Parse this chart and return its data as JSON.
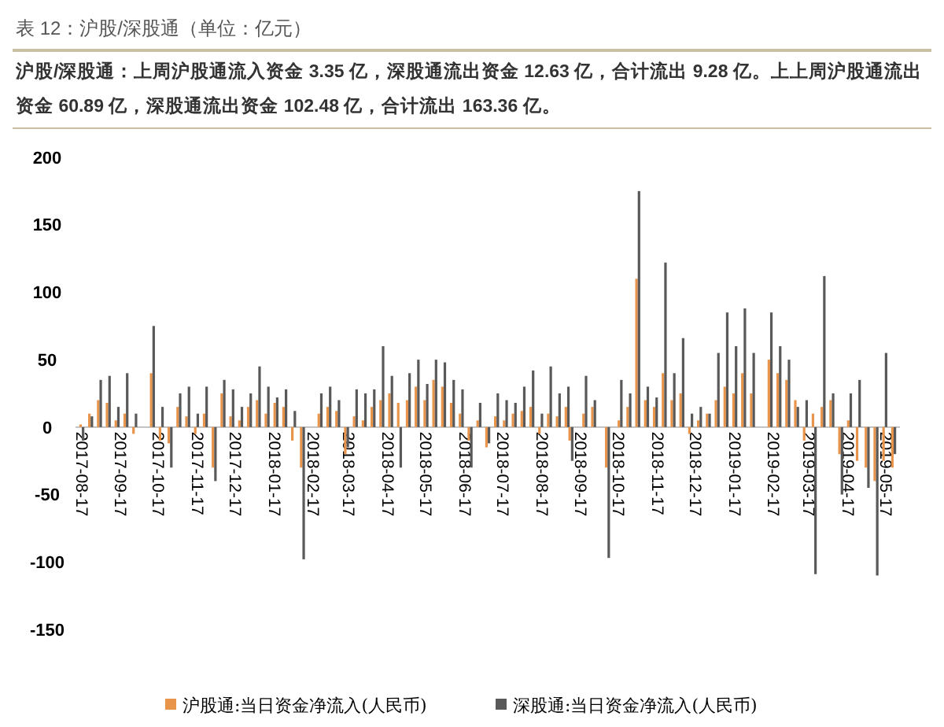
{
  "chart_data": {
    "type": "bar",
    "title": "表 12：沪股/深股通（单位：亿元）",
    "subtitle": "沪股/深股通：上周沪股通流入资金 3.35 亿，深股通流出资金 12.63 亿，合计流出 9.28 亿。上上周沪股通流出资金 60.89 亿，深股通流出资金 102.48 亿，合计流出 163.36 亿。",
    "x": [
      "2017-08-17",
      "2017-08-24",
      "2017-08-31",
      "2017-09-07",
      "2017-09-14",
      "2017-09-21",
      "2017-09-28",
      "2017-10-05",
      "2017-10-12",
      "2017-10-19",
      "2017-10-26",
      "2017-11-02",
      "2017-11-09",
      "2017-11-16",
      "2017-11-23",
      "2017-11-30",
      "2017-12-07",
      "2017-12-14",
      "2017-12-21",
      "2017-12-28",
      "2018-01-04",
      "2018-01-11",
      "2018-01-18",
      "2018-01-25",
      "2018-02-01",
      "2018-02-08",
      "2018-02-15",
      "2018-02-22",
      "2018-03-01",
      "2018-03-08",
      "2018-03-15",
      "2018-03-22",
      "2018-03-29",
      "2018-04-05",
      "2018-04-12",
      "2018-04-19",
      "2018-04-26",
      "2018-05-03",
      "2018-05-10",
      "2018-05-17",
      "2018-05-24",
      "2018-05-31",
      "2018-06-07",
      "2018-06-14",
      "2018-06-21",
      "2018-06-28",
      "2018-07-05",
      "2018-07-12",
      "2018-07-19",
      "2018-07-26",
      "2018-08-02",
      "2018-08-09",
      "2018-08-16",
      "2018-08-23",
      "2018-08-30",
      "2018-09-06",
      "2018-09-09",
      "2018-09-20",
      "2018-09-27",
      "2018-10-04",
      "2018-10-08",
      "2018-10-18",
      "2018-10-25",
      "2018-11-01",
      "2018-11-08",
      "2018-11-15",
      "2018-11-22",
      "2018-11-29",
      "2018-12-06",
      "2018-12-13",
      "2018-12-20",
      "2018-12-27",
      "2019-01-03",
      "2019-01-10",
      "2019-01-17",
      "2019-01-24",
      "2019-01-31",
      "2019-02-07",
      "2019-02-14",
      "2019-02-21",
      "2019-02-28",
      "2019-03-07",
      "2019-03-14",
      "2019-03-21",
      "2019-03-28",
      "2019-04-04",
      "2019-04-11",
      "2019-04-18",
      "2019-04-25",
      "2019-05-02",
      "2019-05-09",
      "2019-05-16",
      "2019-05-23"
    ],
    "series": [
      {
        "name": "沪股通:当日资金净流入(人民币)",
        "color": "#e8944a",
        "values": [
          2,
          10,
          20,
          18,
          5,
          10,
          -5,
          0,
          40,
          -10,
          -12,
          15,
          8,
          -5,
          10,
          -30,
          25,
          8,
          5,
          15,
          20,
          10,
          18,
          15,
          -10,
          -30,
          0,
          10,
          15,
          12,
          -20,
          8,
          5,
          15,
          20,
          25,
          18,
          20,
          30,
          20,
          35,
          30,
          18,
          10,
          -10,
          5,
          -15,
          8,
          5,
          10,
          12,
          15,
          -5,
          10,
          8,
          15,
          -10,
          10,
          15,
          0,
          -30,
          5,
          15,
          110,
          20,
          15,
          40,
          20,
          25,
          -5,
          5,
          10,
          20,
          30,
          25,
          40,
          25,
          0,
          50,
          40,
          35,
          20,
          -10,
          10,
          15,
          20,
          -20,
          5,
          -25,
          -30,
          -40,
          -25,
          -30
        ]
      },
      {
        "name": "深股通:当日资金净流入(人民币)",
        "color": "#595959",
        "values": [
          -10,
          8,
          35,
          38,
          15,
          40,
          10,
          0,
          75,
          15,
          -30,
          25,
          30,
          10,
          30,
          -40,
          35,
          28,
          15,
          25,
          45,
          30,
          22,
          28,
          12,
          -98,
          0,
          25,
          30,
          20,
          -15,
          28,
          25,
          28,
          60,
          38,
          -30,
          40,
          50,
          32,
          50,
          48,
          35,
          28,
          -30,
          18,
          -12,
          25,
          20,
          18,
          30,
          42,
          10,
          45,
          25,
          30,
          -25,
          38,
          20,
          0,
          -97,
          35,
          25,
          175,
          30,
          22,
          122,
          40,
          66,
          10,
          15,
          10,
          55,
          85,
          60,
          88,
          55,
          0,
          85,
          60,
          50,
          15,
          20,
          -109,
          112,
          25,
          -50,
          25,
          35,
          -45,
          -110,
          55,
          -20
        ]
      }
    ],
    "xlim": [
      "2017-08-12",
      "2019-05-28"
    ],
    "xticks": [
      "2017-08-17",
      "2017-09-17",
      "2017-10-17",
      "2017-11-17",
      "2017-12-17",
      "2018-01-17",
      "2018-02-17",
      "2018-03-17",
      "2018-04-17",
      "2018-05-17",
      "2018-06-17",
      "2018-07-17",
      "2018-08-17",
      "2018-09-17",
      "2018-10-17",
      "2018-11-17",
      "2018-12-17",
      "2019-01-17",
      "2019-02-17",
      "2019-03-17",
      "2019-04-17",
      "2019-05-17"
    ],
    "ylim": [
      -150,
      200
    ],
    "yticks": [
      -150,
      -100,
      -50,
      0,
      50,
      100,
      150,
      200
    ],
    "legend": "bottom"
  }
}
